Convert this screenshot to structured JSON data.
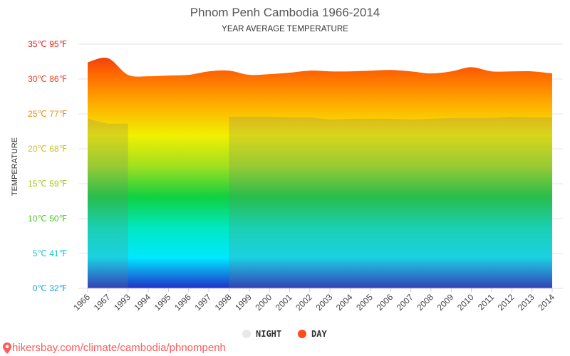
{
  "title": "Phnom Penh Cambodia 1966-2014",
  "subtitle": "YEAR AVERAGE TEMPERATURE",
  "legend": {
    "night": {
      "label": "NIGHT",
      "color": "#e8e8e8"
    },
    "day": {
      "label": "DAY",
      "color": "#ff4d1a"
    }
  },
  "source_text": "hikersbay.com/climate/cambodia/phnompenh",
  "chart_data": {
    "type": "area",
    "title": "Phnom Penh Cambodia 1966-2014",
    "subtitle": "YEAR AVERAGE TEMPERATURE",
    "xlabel": "",
    "ylabel": "TEMPERATURE",
    "categories": [
      "1966",
      "1967",
      "1993",
      "1994",
      "1995",
      "1996",
      "1997",
      "1998",
      "1999",
      "2000",
      "2001",
      "2002",
      "2003",
      "2004",
      "2005",
      "2006",
      "2007",
      "2008",
      "2009",
      "2010",
      "2011",
      "2012",
      "2013",
      "2014"
    ],
    "series": [
      {
        "name": "DAY",
        "values": [
          32.4,
          33.0,
          30.6,
          30.4,
          30.5,
          30.6,
          31.1,
          31.2,
          30.6,
          30.7,
          30.9,
          31.2,
          31.1,
          31.1,
          31.2,
          31.3,
          31.1,
          30.8,
          31.1,
          31.7,
          31.1,
          31.1,
          31.1,
          30.8
        ]
      },
      {
        "name": "NIGHT",
        "values": [
          24.3,
          23.6,
          0.1,
          0.1,
          0.1,
          0.1,
          0.1,
          24.6,
          24.6,
          24.6,
          24.5,
          24.5,
          24.2,
          24.3,
          24.3,
          24.3,
          24.2,
          24.3,
          24.4,
          24.4,
          24.4,
          24.6,
          24.5,
          24.5
        ]
      }
    ],
    "ylim": [
      0,
      35
    ],
    "yticks": [
      0,
      5,
      10,
      15,
      20,
      25,
      30,
      35
    ],
    "ytick_labels": [
      "0℃ 32℉",
      "5℃ 41℉",
      "10℃ 50℉",
      "15℃ 59℉",
      "20℃ 68℉",
      "25℃ 77℉",
      "30℃ 86℉",
      "35℃ 95℉"
    ],
    "ytick_colors": [
      "#1a9fd8",
      "#14c7d0",
      "#4cc42a",
      "#a8c81a",
      "#c8c020",
      "#f08a10",
      "#f04020",
      "#e8201a"
    ],
    "grid": true,
    "legend_position": "bottom-center",
    "gradient_colors": [
      "#e8201a",
      "#ff6a00",
      "#ffb000",
      "#f0f000",
      "#a0e020",
      "#10d040",
      "#00e8c0",
      "#00e8ff",
      "#2030c8"
    ]
  }
}
